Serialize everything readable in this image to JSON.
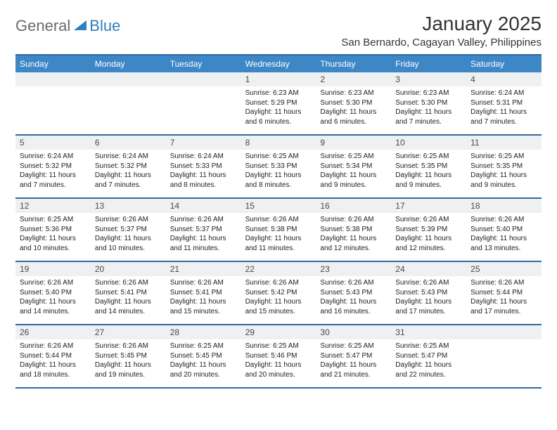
{
  "brand": {
    "part1": "General",
    "part2": "Blue"
  },
  "title": "January 2025",
  "location": "San Bernardo, Cagayan Valley, Philippines",
  "colors": {
    "header_bg": "#3d87c7",
    "rule": "#2f6aa3",
    "daynum_bg": "#eef0f2",
    "text": "#222222",
    "brand_gray": "#6b6b6b",
    "brand_blue": "#2f7fbf"
  },
  "days_of_week": [
    "Sunday",
    "Monday",
    "Tuesday",
    "Wednesday",
    "Thursday",
    "Friday",
    "Saturday"
  ],
  "weeks": [
    [
      {
        "n": "",
        "sunrise": "",
        "sunset": "",
        "daylight": ""
      },
      {
        "n": "",
        "sunrise": "",
        "sunset": "",
        "daylight": ""
      },
      {
        "n": "",
        "sunrise": "",
        "sunset": "",
        "daylight": ""
      },
      {
        "n": "1",
        "sunrise": "Sunrise: 6:23 AM",
        "sunset": "Sunset: 5:29 PM",
        "daylight": "Daylight: 11 hours and 6 minutes."
      },
      {
        "n": "2",
        "sunrise": "Sunrise: 6:23 AM",
        "sunset": "Sunset: 5:30 PM",
        "daylight": "Daylight: 11 hours and 6 minutes."
      },
      {
        "n": "3",
        "sunrise": "Sunrise: 6:23 AM",
        "sunset": "Sunset: 5:30 PM",
        "daylight": "Daylight: 11 hours and 7 minutes."
      },
      {
        "n": "4",
        "sunrise": "Sunrise: 6:24 AM",
        "sunset": "Sunset: 5:31 PM",
        "daylight": "Daylight: 11 hours and 7 minutes."
      }
    ],
    [
      {
        "n": "5",
        "sunrise": "Sunrise: 6:24 AM",
        "sunset": "Sunset: 5:32 PM",
        "daylight": "Daylight: 11 hours and 7 minutes."
      },
      {
        "n": "6",
        "sunrise": "Sunrise: 6:24 AM",
        "sunset": "Sunset: 5:32 PM",
        "daylight": "Daylight: 11 hours and 7 minutes."
      },
      {
        "n": "7",
        "sunrise": "Sunrise: 6:24 AM",
        "sunset": "Sunset: 5:33 PM",
        "daylight": "Daylight: 11 hours and 8 minutes."
      },
      {
        "n": "8",
        "sunrise": "Sunrise: 6:25 AM",
        "sunset": "Sunset: 5:33 PM",
        "daylight": "Daylight: 11 hours and 8 minutes."
      },
      {
        "n": "9",
        "sunrise": "Sunrise: 6:25 AM",
        "sunset": "Sunset: 5:34 PM",
        "daylight": "Daylight: 11 hours and 9 minutes."
      },
      {
        "n": "10",
        "sunrise": "Sunrise: 6:25 AM",
        "sunset": "Sunset: 5:35 PM",
        "daylight": "Daylight: 11 hours and 9 minutes."
      },
      {
        "n": "11",
        "sunrise": "Sunrise: 6:25 AM",
        "sunset": "Sunset: 5:35 PM",
        "daylight": "Daylight: 11 hours and 9 minutes."
      }
    ],
    [
      {
        "n": "12",
        "sunrise": "Sunrise: 6:25 AM",
        "sunset": "Sunset: 5:36 PM",
        "daylight": "Daylight: 11 hours and 10 minutes."
      },
      {
        "n": "13",
        "sunrise": "Sunrise: 6:26 AM",
        "sunset": "Sunset: 5:37 PM",
        "daylight": "Daylight: 11 hours and 10 minutes."
      },
      {
        "n": "14",
        "sunrise": "Sunrise: 6:26 AM",
        "sunset": "Sunset: 5:37 PM",
        "daylight": "Daylight: 11 hours and 11 minutes."
      },
      {
        "n": "15",
        "sunrise": "Sunrise: 6:26 AM",
        "sunset": "Sunset: 5:38 PM",
        "daylight": "Daylight: 11 hours and 11 minutes."
      },
      {
        "n": "16",
        "sunrise": "Sunrise: 6:26 AM",
        "sunset": "Sunset: 5:38 PM",
        "daylight": "Daylight: 11 hours and 12 minutes."
      },
      {
        "n": "17",
        "sunrise": "Sunrise: 6:26 AM",
        "sunset": "Sunset: 5:39 PM",
        "daylight": "Daylight: 11 hours and 12 minutes."
      },
      {
        "n": "18",
        "sunrise": "Sunrise: 6:26 AM",
        "sunset": "Sunset: 5:40 PM",
        "daylight": "Daylight: 11 hours and 13 minutes."
      }
    ],
    [
      {
        "n": "19",
        "sunrise": "Sunrise: 6:26 AM",
        "sunset": "Sunset: 5:40 PM",
        "daylight": "Daylight: 11 hours and 14 minutes."
      },
      {
        "n": "20",
        "sunrise": "Sunrise: 6:26 AM",
        "sunset": "Sunset: 5:41 PM",
        "daylight": "Daylight: 11 hours and 14 minutes."
      },
      {
        "n": "21",
        "sunrise": "Sunrise: 6:26 AM",
        "sunset": "Sunset: 5:41 PM",
        "daylight": "Daylight: 11 hours and 15 minutes."
      },
      {
        "n": "22",
        "sunrise": "Sunrise: 6:26 AM",
        "sunset": "Sunset: 5:42 PM",
        "daylight": "Daylight: 11 hours and 15 minutes."
      },
      {
        "n": "23",
        "sunrise": "Sunrise: 6:26 AM",
        "sunset": "Sunset: 5:43 PM",
        "daylight": "Daylight: 11 hours and 16 minutes."
      },
      {
        "n": "24",
        "sunrise": "Sunrise: 6:26 AM",
        "sunset": "Sunset: 5:43 PM",
        "daylight": "Daylight: 11 hours and 17 minutes."
      },
      {
        "n": "25",
        "sunrise": "Sunrise: 6:26 AM",
        "sunset": "Sunset: 5:44 PM",
        "daylight": "Daylight: 11 hours and 17 minutes."
      }
    ],
    [
      {
        "n": "26",
        "sunrise": "Sunrise: 6:26 AM",
        "sunset": "Sunset: 5:44 PM",
        "daylight": "Daylight: 11 hours and 18 minutes."
      },
      {
        "n": "27",
        "sunrise": "Sunrise: 6:26 AM",
        "sunset": "Sunset: 5:45 PM",
        "daylight": "Daylight: 11 hours and 19 minutes."
      },
      {
        "n": "28",
        "sunrise": "Sunrise: 6:25 AM",
        "sunset": "Sunset: 5:45 PM",
        "daylight": "Daylight: 11 hours and 20 minutes."
      },
      {
        "n": "29",
        "sunrise": "Sunrise: 6:25 AM",
        "sunset": "Sunset: 5:46 PM",
        "daylight": "Daylight: 11 hours and 20 minutes."
      },
      {
        "n": "30",
        "sunrise": "Sunrise: 6:25 AM",
        "sunset": "Sunset: 5:47 PM",
        "daylight": "Daylight: 11 hours and 21 minutes."
      },
      {
        "n": "31",
        "sunrise": "Sunrise: 6:25 AM",
        "sunset": "Sunset: 5:47 PM",
        "daylight": "Daylight: 11 hours and 22 minutes."
      },
      {
        "n": "",
        "sunrise": "",
        "sunset": "",
        "daylight": ""
      }
    ]
  ]
}
